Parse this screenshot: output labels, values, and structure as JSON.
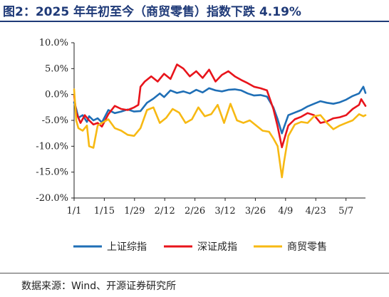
{
  "title": "图2：2025 年年初至今（商贸零售）指数下跌 4.19%",
  "source": "数据来源：Wind、开源证券研究所",
  "chart_data": {
    "type": "line",
    "ylim": [
      -20,
      10
    ],
    "yticks": [
      10,
      5,
      0,
      -5,
      -10,
      -15,
      -20
    ],
    "ytick_labels": [
      "10.0%",
      "5.0%",
      "0.0%",
      "-5.0%",
      "-10.0%",
      "-15.0%",
      "-20.0%"
    ],
    "x_tick_labels": [
      "1/1",
      "1/15",
      "1/29",
      "2/12",
      "2/26",
      "3/12",
      "3/26",
      "4/9",
      "4/23",
      "5/7"
    ],
    "x_range": [
      "1/1",
      "5/16"
    ],
    "legend_position": "bottom",
    "series": [
      {
        "name": "上证综指",
        "color": "#1f6fb6",
        "x": [
          0,
          1,
          2,
          4,
          6,
          7,
          9,
          11,
          13,
          16,
          19,
          22,
          25,
          28,
          31,
          34,
          37,
          40,
          42,
          45,
          48,
          51,
          54,
          57,
          60,
          63,
          66,
          69,
          72,
          75,
          78,
          81,
          84,
          87,
          90,
          93,
          95,
          97,
          98,
          100,
          103,
          106,
          109,
          112,
          115,
          118,
          121,
          124,
          127,
          130,
          133,
          135,
          136
        ],
        "y": [
          -1.5,
          -2.8,
          -4.5,
          -4.0,
          -5.3,
          -4.2,
          -5.0,
          -4.6,
          -5.4,
          -3.0,
          -3.6,
          -3.3,
          -2.9,
          -3.3,
          -3.2,
          -1.6,
          -0.8,
          0.2,
          -0.5,
          0.8,
          0.3,
          0.6,
          0.2,
          0.9,
          0.4,
          1.2,
          0.8,
          0.6,
          0.9,
          1.0,
          0.8,
          0.2,
          -0.2,
          -0.1,
          -0.4,
          -2.5,
          -4.8,
          -7.5,
          -6.3,
          -4.0,
          -3.5,
          -3.0,
          -2.3,
          -1.8,
          -1.3,
          -1.6,
          -1.8,
          -1.5,
          -1.0,
          -0.3,
          0.2,
          1.5,
          0.3
        ]
      },
      {
        "name": "深证成指",
        "color": "#e8141b",
        "x": [
          0,
          1,
          3,
          5,
          7,
          9,
          11,
          13,
          16,
          19,
          22,
          25,
          28,
          30,
          31,
          33,
          36,
          39,
          42,
          45,
          48,
          51,
          54,
          57,
          60,
          63,
          66,
          69,
          72,
          75,
          78,
          81,
          84,
          87,
          90,
          93,
          95,
          97,
          98,
          100,
          103,
          106,
          109,
          112,
          115,
          118,
          121,
          124,
          127,
          130,
          133,
          134,
          136
        ],
        "y": [
          -0.2,
          -3.5,
          -5.5,
          -4.0,
          -5.0,
          -5.8,
          -5.5,
          -6.2,
          -3.8,
          -2.2,
          -2.8,
          -3.0,
          -2.5,
          -2.0,
          1.5,
          2.5,
          3.5,
          2.5,
          4.0,
          3.0,
          5.8,
          5.0,
          3.5,
          4.5,
          3.2,
          4.8,
          2.5,
          3.8,
          4.5,
          3.5,
          2.8,
          2.2,
          1.5,
          1.2,
          0.8,
          -2.8,
          -6.2,
          -10.2,
          -8.8,
          -6.0,
          -4.8,
          -4.3,
          -3.6,
          -4.0,
          -5.5,
          -5.2,
          -4.6,
          -4.4,
          -4.0,
          -2.8,
          -2.0,
          -0.9,
          -2.2
        ]
      },
      {
        "name": "商贸零售",
        "color": "#f7b913",
        "x": [
          0,
          1,
          2,
          4,
          6,
          7,
          9,
          11,
          13,
          16,
          19,
          22,
          25,
          28,
          31,
          34,
          37,
          40,
          43,
          46,
          49,
          52,
          55,
          58,
          61,
          64,
          67,
          70,
          73,
          76,
          79,
          82,
          85,
          88,
          91,
          93,
          95,
          97,
          98,
          100,
          103,
          106,
          109,
          112,
          115,
          118,
          121,
          124,
          127,
          130,
          133,
          135,
          136
        ],
        "y": [
          1.0,
          -5.0,
          -6.5,
          -7.0,
          -6.0,
          -10.0,
          -10.3,
          -6.0,
          -5.5,
          -4.8,
          -6.5,
          -7.0,
          -7.8,
          -8.0,
          -6.5,
          -3.0,
          -2.5,
          -5.5,
          -4.5,
          -2.8,
          -3.5,
          -5.5,
          -4.8,
          -2.5,
          -4.2,
          -3.8,
          -2.0,
          -5.5,
          -1.8,
          -5.0,
          -5.5,
          -5.0,
          -6.0,
          -7.0,
          -7.2,
          -8.5,
          -10.0,
          -16.0,
          -13.0,
          -8.0,
          -5.8,
          -5.3,
          -5.5,
          -4.2,
          -4.0,
          -5.5,
          -6.7,
          -6.0,
          -5.5,
          -5.0,
          -3.8,
          -4.2,
          -4.0
        ]
      }
    ]
  }
}
